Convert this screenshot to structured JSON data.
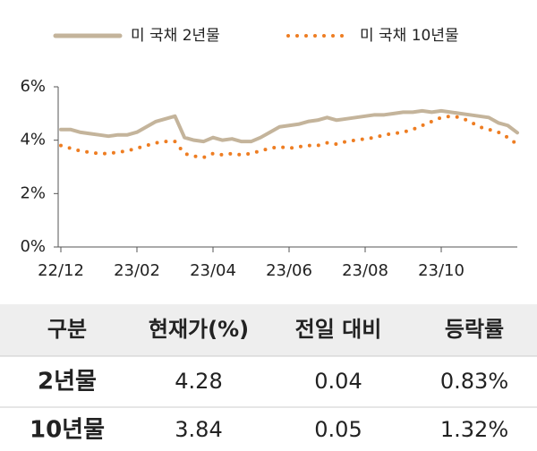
{
  "chart_data": {
    "type": "line",
    "categories": [
      "22/12",
      null,
      null,
      null,
      null,
      null,
      null,
      null,
      "23/02",
      null,
      null,
      null,
      null,
      null,
      null,
      null,
      "23/04",
      null,
      null,
      null,
      null,
      null,
      null,
      null,
      "23/06",
      null,
      null,
      null,
      null,
      null,
      null,
      null,
      "23/08",
      null,
      null,
      null,
      null,
      null,
      null,
      null,
      "23/10",
      null,
      null,
      null,
      null,
      null,
      null,
      null,
      null
    ],
    "series": [
      {
        "name": "미 국채 2년물",
        "color": "#c4b49b",
        "style": "solid",
        "values": [
          4.4,
          4.4,
          4.3,
          4.25,
          4.2,
          4.15,
          4.2,
          4.2,
          4.3,
          4.5,
          4.7,
          4.8,
          4.9,
          4.1,
          4.0,
          3.95,
          4.1,
          4.0,
          4.05,
          3.95,
          3.95,
          4.1,
          4.3,
          4.5,
          4.55,
          4.6,
          4.7,
          4.75,
          4.85,
          4.75,
          4.8,
          4.85,
          4.9,
          4.95,
          4.95,
          5.0,
          5.05,
          5.05,
          5.1,
          5.05,
          5.1,
          5.05,
          5.0,
          4.95,
          4.9,
          4.85,
          4.65,
          4.55,
          4.28
        ]
      },
      {
        "name": "미 국채 10년물",
        "color": "#ee7d22",
        "style": "dotted",
        "values": [
          3.8,
          3.7,
          3.6,
          3.55,
          3.5,
          3.5,
          3.55,
          3.6,
          3.7,
          3.8,
          3.9,
          3.95,
          3.95,
          3.5,
          3.4,
          3.35,
          3.5,
          3.45,
          3.5,
          3.45,
          3.5,
          3.6,
          3.7,
          3.75,
          3.7,
          3.75,
          3.8,
          3.8,
          3.9,
          3.85,
          3.95,
          4.0,
          4.05,
          4.1,
          4.2,
          4.25,
          4.3,
          4.4,
          4.55,
          4.7,
          4.85,
          4.9,
          4.85,
          4.7,
          4.5,
          4.4,
          4.3,
          4.1,
          3.84
        ]
      }
    ],
    "ylim": [
      0,
      6
    ],
    "yticks": [
      {
        "value": 0,
        "label": "0%"
      },
      {
        "value": 2,
        "label": "2%"
      },
      {
        "value": 4,
        "label": "4%"
      },
      {
        "value": 6,
        "label": "6%"
      }
    ],
    "grid": false,
    "legend": "top"
  },
  "table": {
    "header": [
      "구분",
      "현재가(%)",
      "전일 대비",
      "등락률"
    ],
    "rows": [
      [
        "2년물",
        "4.28",
        "0.04",
        "0.83%"
      ],
      [
        "10년물",
        "3.84",
        "0.05",
        "1.32%"
      ]
    ]
  }
}
